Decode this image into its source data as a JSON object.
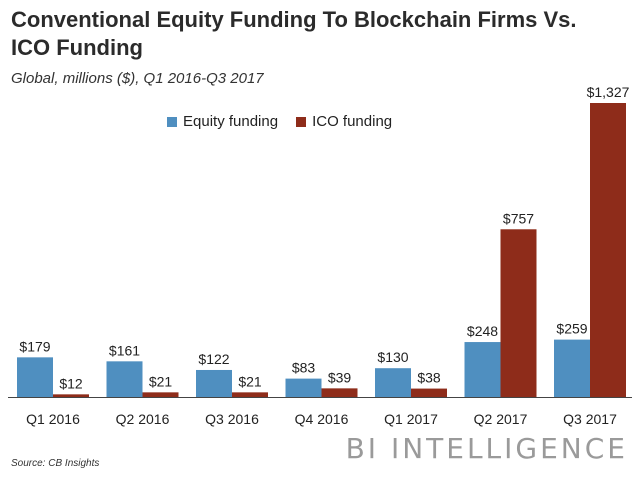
{
  "header": {
    "title": "Conventional Equity Funding To Blockchain Firms Vs. ICO Funding",
    "subtitle": "Global, millions ($), Q1 2016-Q3 2017"
  },
  "footer": {
    "source": "Source: CB Insights",
    "brand": "BI INTELLIGENCE"
  },
  "colors": {
    "equity": "#4f8fc0",
    "ico": "#8e2c1a"
  },
  "chart_data": {
    "type": "bar",
    "title": "Conventional Equity Funding To Blockchain Firms Vs. ICO Funding",
    "subtitle": "Global, millions ($), Q1 2016-Q3 2017",
    "categories": [
      "Q1 2016",
      "Q2 2016",
      "Q3 2016",
      "Q4 2016",
      "Q1 2017",
      "Q2 2017",
      "Q3 2017"
    ],
    "series": [
      {
        "name": "Equity funding",
        "values": [
          179,
          161,
          122,
          83,
          130,
          248,
          259
        ],
        "labels": [
          "$179",
          "$161",
          "$122",
          "$83",
          "$130",
          "$248",
          "$259"
        ]
      },
      {
        "name": "ICO funding",
        "values": [
          12,
          21,
          21,
          39,
          38,
          757,
          1327
        ],
        "labels": [
          "$12",
          "$21",
          "$21",
          "$39",
          "$38",
          "$757",
          "$1,327"
        ]
      }
    ],
    "ylim": [
      0,
      1327
    ],
    "legend": "top-left",
    "grid": false
  }
}
